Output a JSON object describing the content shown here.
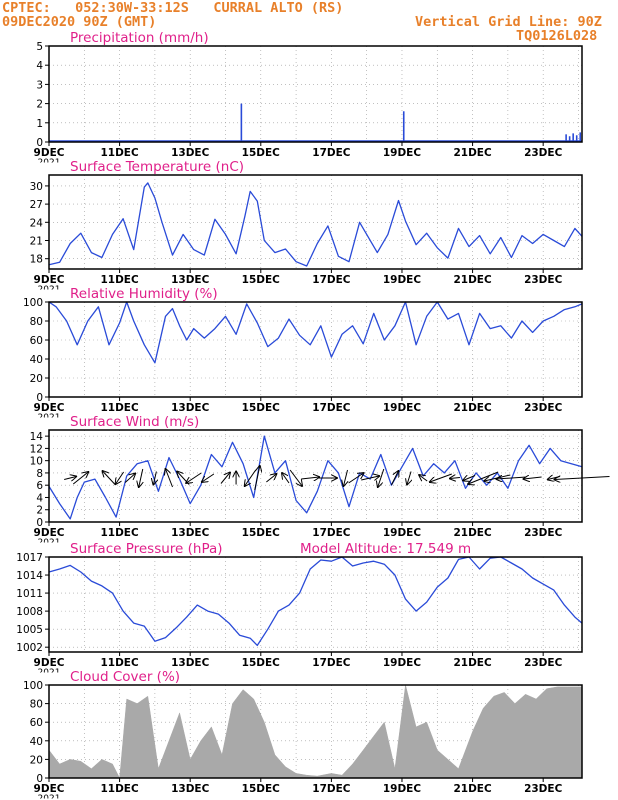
{
  "header": {
    "line1": "CPTEC:   052:30W-33:12S   CURRAL ALTO (RS)",
    "line2_left": "09DEC2020 90Z (GMT)",
    "line2_right": "Vertical Grid Line: 90Z",
    "code": "TQ0126L028"
  },
  "colors": {
    "title": "#e0208a",
    "header": "#e8802a",
    "line": "#2a4bd8",
    "fill": "#a9a9a9",
    "grid": "#9a9a9a"
  },
  "x_tick_labels": [
    "9DEC",
    "11DEC",
    "13DEC",
    "15DEC",
    "17DEC",
    "19DEC",
    "21DEC",
    "23DEC"
  ],
  "x_tick_days": [
    9,
    11,
    13,
    15,
    17,
    19,
    21,
    23
  ],
  "cut_label": "2021",
  "chart_data": [
    {
      "type": "bar",
      "title": "Precipitation (mm/h)",
      "ylim": [
        0,
        5
      ],
      "yticks": [
        0,
        1,
        2,
        3,
        4,
        5
      ],
      "xlim": [
        9,
        24.1
      ],
      "x": [
        14.45,
        19.05,
        23.65,
        23.75,
        23.85,
        23.95,
        24.05
      ],
      "values": [
        2.0,
        1.6,
        0.4,
        0.3,
        0.45,
        0.35,
        0.5
      ]
    },
    {
      "type": "line",
      "title": "Surface Temperature (nC)",
      "ylim": [
        16.3,
        31.8
      ],
      "yticks": [
        18,
        21,
        24,
        27,
        30
      ],
      "xlim": [
        9,
        24.1
      ],
      "x": [
        9.0,
        9.3,
        9.6,
        9.9,
        10.2,
        10.5,
        10.8,
        11.1,
        11.4,
        11.7,
        11.8,
        12.0,
        12.2,
        12.5,
        12.8,
        13.1,
        13.4,
        13.7,
        14.0,
        14.3,
        14.55,
        14.7,
        14.9,
        15.1,
        15.4,
        15.7,
        16.0,
        16.3,
        16.6,
        16.9,
        17.2,
        17.5,
        17.8,
        18.0,
        18.3,
        18.6,
        18.9,
        19.1,
        19.4,
        19.7,
        20.0,
        20.3,
        20.6,
        20.9,
        21.2,
        21.5,
        21.8,
        22.1,
        22.4,
        22.7,
        23.0,
        23.3,
        23.6,
        23.9,
        24.1
      ],
      "values": [
        17.0,
        17.4,
        20.5,
        22.2,
        19.0,
        18.2,
        22.0,
        24.6,
        19.5,
        29.8,
        30.5,
        28.0,
        24.0,
        18.6,
        22.0,
        19.5,
        18.6,
        24.5,
        22.0,
        18.8,
        25.0,
        29.1,
        27.5,
        21.0,
        19.0,
        19.6,
        17.5,
        16.8,
        20.5,
        23.4,
        18.4,
        17.5,
        24.0,
        22.0,
        19.0,
        22.0,
        27.6,
        24.2,
        20.3,
        22.2,
        19.8,
        18.1,
        23.0,
        20.0,
        21.8,
        18.8,
        21.5,
        18.2,
        21.8,
        20.5,
        22.0,
        21.0,
        20.0,
        23.0,
        21.7
      ]
    },
    {
      "type": "line",
      "title": "Relative Humidity (%)",
      "ylim": [
        0,
        100
      ],
      "yticks": [
        0,
        20,
        40,
        60,
        80,
        100
      ],
      "xlim": [
        9,
        24.1
      ],
      "x": [
        9.0,
        9.2,
        9.5,
        9.8,
        10.1,
        10.4,
        10.7,
        11.0,
        11.2,
        11.4,
        11.7,
        12.0,
        12.3,
        12.5,
        12.7,
        12.9,
        13.1,
        13.4,
        13.7,
        14.0,
        14.3,
        14.6,
        14.9,
        15.2,
        15.5,
        15.8,
        16.1,
        16.4,
        16.7,
        17.0,
        17.3,
        17.6,
        17.9,
        18.2,
        18.5,
        18.8,
        19.1,
        19.4,
        19.7,
        20.0,
        20.3,
        20.6,
        20.9,
        21.2,
        21.5,
        21.8,
        22.1,
        22.4,
        22.7,
        23.0,
        23.3,
        23.6,
        23.9,
        24.1
      ],
      "values": [
        100,
        95,
        80,
        55,
        80,
        95,
        55,
        78,
        100,
        80,
        55,
        36,
        85,
        93,
        75,
        60,
        72,
        62,
        72,
        85,
        66,
        98,
        78,
        53,
        62,
        82,
        65,
        55,
        75,
        42,
        66,
        75,
        56,
        88,
        60,
        75,
        100,
        55,
        85,
        100,
        82,
        88,
        55,
        88,
        72,
        75,
        62,
        80,
        68,
        80,
        85,
        92,
        95,
        98
      ]
    },
    {
      "type": "line",
      "title": "Surface Wind (m/s)",
      "ylim": [
        0,
        15
      ],
      "yticks": [
        0,
        2,
        4,
        6,
        8,
        10,
        12,
        14
      ],
      "xlim": [
        9,
        24.1
      ],
      "x": [
        9.0,
        9.3,
        9.6,
        9.8,
        10.0,
        10.3,
        10.6,
        10.9,
        11.2,
        11.5,
        11.8,
        12.1,
        12.4,
        12.7,
        13.0,
        13.3,
        13.6,
        13.9,
        14.2,
        14.5,
        14.8,
        15.1,
        15.4,
        15.7,
        16.0,
        16.3,
        16.6,
        16.9,
        17.2,
        17.5,
        17.8,
        18.1,
        18.4,
        18.7,
        19.0,
        19.3,
        19.6,
        19.9,
        20.2,
        20.5,
        20.8,
        21.1,
        21.4,
        21.7,
        22.0,
        22.3,
        22.6,
        22.9,
        23.2,
        23.5,
        23.8,
        24.1
      ],
      "values": [
        5.8,
        3.0,
        0.5,
        4.0,
        6.5,
        7.0,
        4.0,
        0.8,
        7.5,
        9.5,
        10.0,
        5.0,
        10.5,
        7.0,
        3.0,
        6.0,
        11.0,
        9.0,
        13.0,
        9.5,
        4.0,
        14.0,
        8.0,
        10.0,
        3.5,
        1.5,
        5.0,
        10.0,
        8.0,
        2.5,
        8.0,
        7.0,
        11.0,
        6.0,
        9.0,
        12.0,
        7.5,
        9.5,
        8.0,
        10.0,
        5.5,
        8.0,
        6.0,
        8.0,
        5.5,
        10.0,
        12.5,
        9.5,
        12.0,
        10.0,
        9.5,
        9.0
      ]
    },
    {
      "type": "line",
      "title": "Surface Pressure (hPa)",
      "annotation": "Model Altitude: 17.549  m",
      "ylim": [
        1001.2,
        1017
      ],
      "yticks": [
        1002,
        1005,
        1008,
        1011,
        1014,
        1017
      ],
      "xlim": [
        9,
        24.1
      ],
      "x": [
        9.0,
        9.3,
        9.6,
        9.9,
        10.2,
        10.5,
        10.8,
        11.1,
        11.4,
        11.7,
        12.0,
        12.3,
        12.6,
        12.9,
        13.2,
        13.5,
        13.8,
        14.1,
        14.4,
        14.7,
        14.9,
        15.2,
        15.5,
        15.8,
        16.1,
        16.4,
        16.7,
        17.0,
        17.3,
        17.6,
        17.9,
        18.2,
        18.5,
        18.8,
        19.1,
        19.4,
        19.7,
        20.0,
        20.3,
        20.6,
        20.9,
        21.2,
        21.5,
        21.8,
        22.1,
        22.4,
        22.7,
        23.0,
        23.3,
        23.6,
        23.9,
        24.1
      ],
      "values": [
        1014.5,
        1015.0,
        1015.6,
        1014.5,
        1013.0,
        1012.2,
        1011.0,
        1008.0,
        1006.0,
        1005.5,
        1003.0,
        1003.6,
        1005.2,
        1007.0,
        1009.0,
        1008.0,
        1007.5,
        1006.0,
        1004.0,
        1003.5,
        1002.3,
        1005.0,
        1008.0,
        1009.0,
        1011.0,
        1015.0,
        1016.5,
        1016.3,
        1017.0,
        1015.5,
        1016.0,
        1016.3,
        1015.8,
        1014.0,
        1010.0,
        1008.0,
        1009.5,
        1012.0,
        1013.5,
        1016.6,
        1017.0,
        1015.0,
        1016.8,
        1017.0,
        1016.0,
        1015.0,
        1013.5,
        1012.5,
        1011.5,
        1009.0,
        1007.0,
        1006.0
      ]
    },
    {
      "type": "area",
      "title": "Cloud Cover (%)",
      "ylim": [
        0,
        100
      ],
      "yticks": [
        0,
        20,
        40,
        60,
        80,
        100
      ],
      "xlim": [
        9,
        24.1
      ],
      "x": [
        9.0,
        9.3,
        9.6,
        9.9,
        10.2,
        10.5,
        10.8,
        11.0,
        11.2,
        11.5,
        11.8,
        12.1,
        12.4,
        12.7,
        13.0,
        13.3,
        13.6,
        13.9,
        14.2,
        14.5,
        14.8,
        15.1,
        15.4,
        15.7,
        16.0,
        16.3,
        16.6,
        17.0,
        17.3,
        17.6,
        17.9,
        18.2,
        18.5,
        18.8,
        19.1,
        19.4,
        19.7,
        20.0,
        20.3,
        20.6,
        21.0,
        21.3,
        21.6,
        21.9,
        22.2,
        22.5,
        22.8,
        23.1,
        23.4,
        23.7,
        24.1
      ],
      "values": [
        30,
        15,
        20,
        18,
        10,
        20,
        15,
        0,
        85,
        80,
        88,
        10,
        40,
        70,
        20,
        40,
        55,
        25,
        80,
        95,
        85,
        60,
        25,
        12,
        5,
        3,
        2,
        5,
        3,
        15,
        30,
        45,
        60,
        10,
        100,
        55,
        60,
        30,
        20,
        10,
        50,
        75,
        88,
        92,
        80,
        90,
        85,
        96,
        98,
        98,
        98
      ]
    }
  ]
}
